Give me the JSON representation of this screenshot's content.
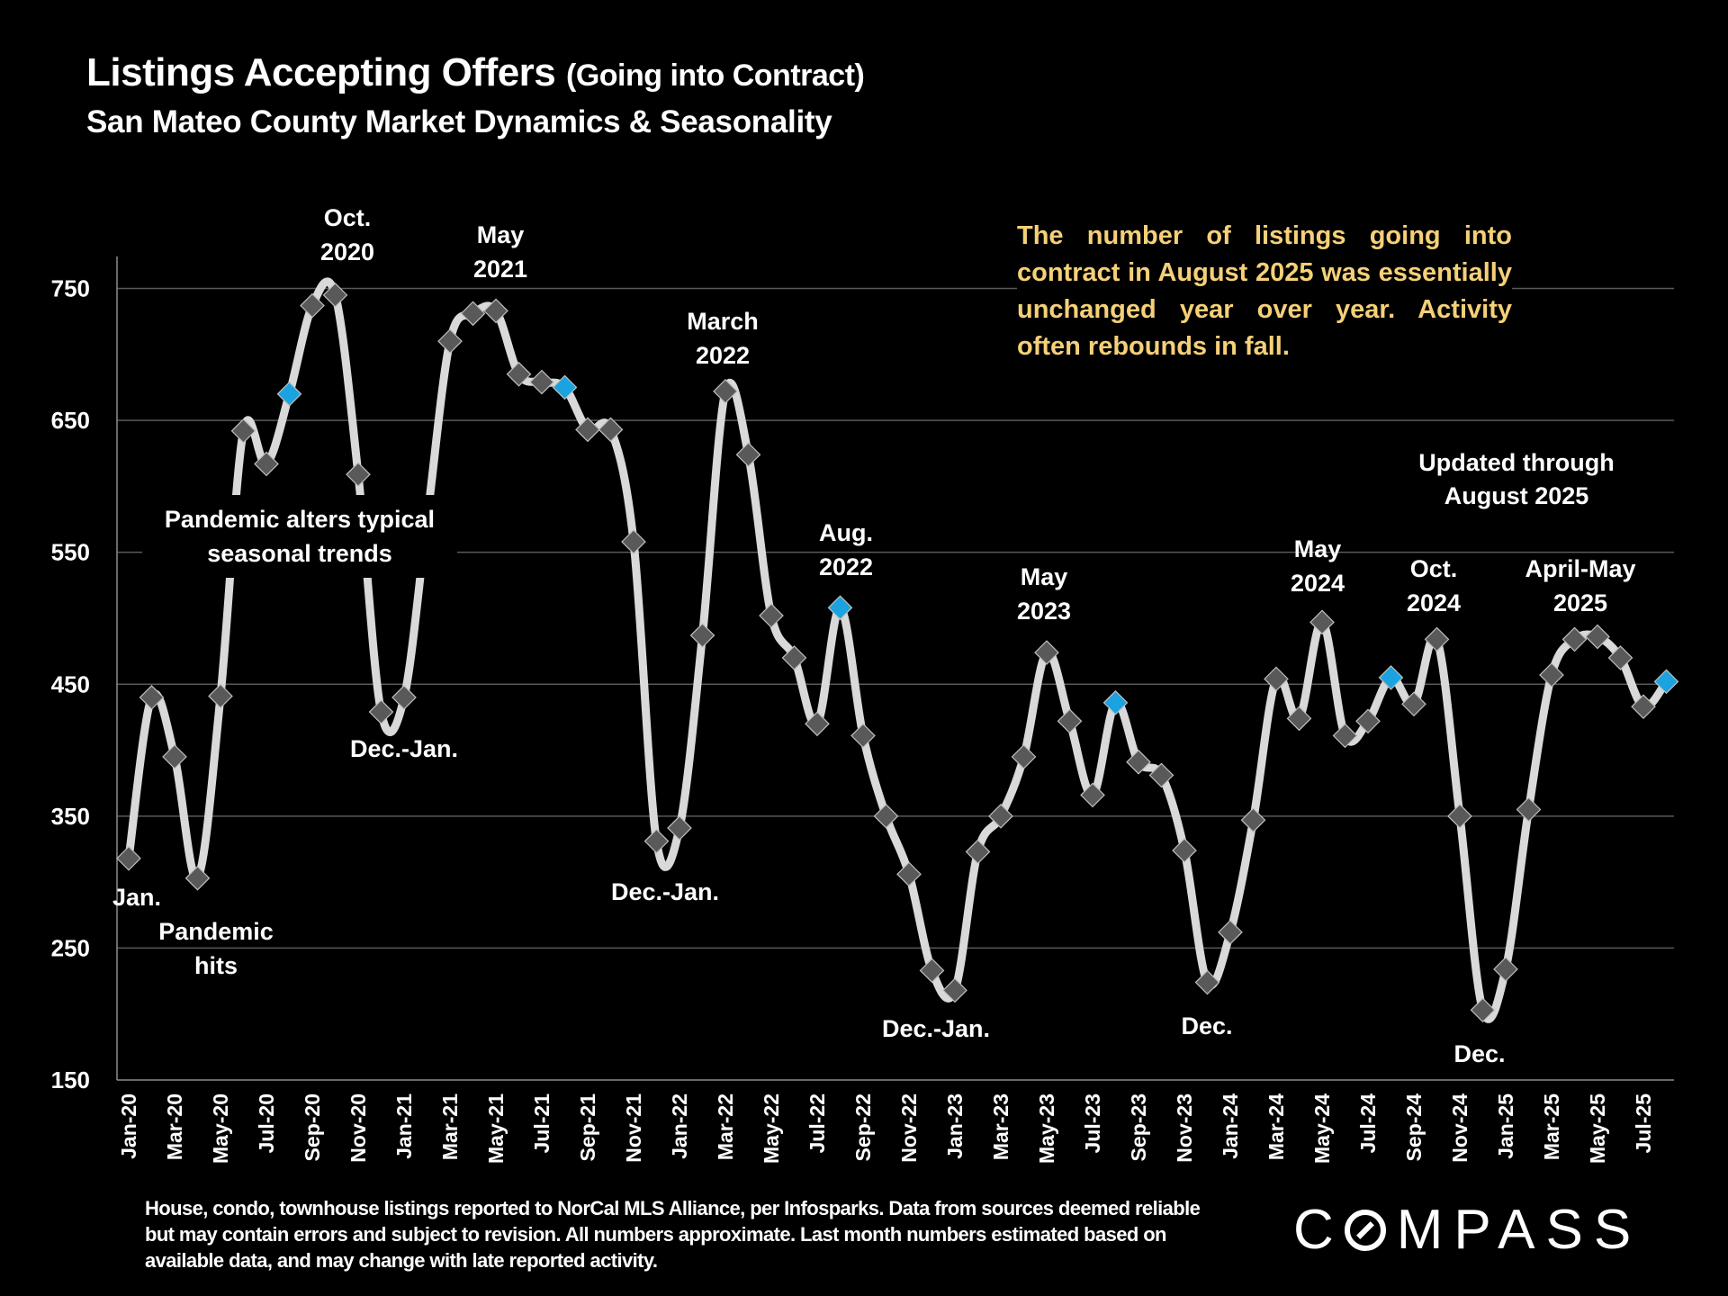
{
  "header": {
    "title_main": "Listings Accepting Offers",
    "title_paren": "(Going into Contract)",
    "subtitle": "San Mateo County Market Dynamics & Seasonality"
  },
  "note": "The number of listings going into contract in August 2025 was essentially unchanged year over year. Activity often rebounds in fall.",
  "updated": [
    "Updated through",
    "August 2025"
  ],
  "footer": "House, condo, townhouse listings reported to NorCal MLS Alliance, per Infosparks. Data from sources deemed reliable but may contain errors and subject to revision. All numbers approximate. Last month numbers estimated based on available data, and may change with late reported activity.",
  "logo": {
    "text_before": "C",
    "text_after": "MPASS"
  },
  "colors": {
    "line": "#d9d9d9",
    "marker": "#595959",
    "marker_highlight": "#1aa3e0",
    "note_text": "#f5d078",
    "grid": "#595959",
    "background": "#000000"
  },
  "chart_data": {
    "type": "line",
    "title": "Listings Accepting Offers (Going into Contract)",
    "subtitle": "San Mateo County Market Dynamics & Seasonality",
    "xlabel": "",
    "ylabel": "",
    "ylim": [
      150,
      780
    ],
    "yticks": [
      150,
      250,
      350,
      450,
      550,
      650,
      750
    ],
    "grid": true,
    "smoothed": true,
    "x": [
      "Jan-20",
      "Feb-20",
      "Mar-20",
      "Apr-20",
      "May-20",
      "Jun-20",
      "Jul-20",
      "Aug-20",
      "Sep-20",
      "Oct-20",
      "Nov-20",
      "Dec-20",
      "Jan-21",
      "Feb-21",
      "Mar-21",
      "Apr-21",
      "May-21",
      "Jun-21",
      "Jul-21",
      "Aug-21",
      "Sep-21",
      "Oct-21",
      "Nov-21",
      "Dec-21",
      "Jan-22",
      "Feb-22",
      "Mar-22",
      "Apr-22",
      "May-22",
      "Jun-22",
      "Jul-22",
      "Aug-22",
      "Sep-22",
      "Oct-22",
      "Nov-22",
      "Dec-22",
      "Jan-23",
      "Feb-23",
      "Mar-23",
      "Apr-23",
      "May-23",
      "Jun-23",
      "Jul-23",
      "Aug-23",
      "Sep-23",
      "Oct-23",
      "Nov-23",
      "Dec-23",
      "Jan-24",
      "Feb-24",
      "Mar-24",
      "Apr-24",
      "May-24",
      "Jun-24",
      "Jul-24",
      "Aug-24",
      "Sep-24",
      "Oct-24",
      "Nov-24",
      "Dec-24",
      "Jan-25",
      "Feb-25",
      "Mar-25",
      "Apr-25",
      "May-25",
      "Jun-25",
      "Jul-25",
      "Aug-25"
    ],
    "xtick_labels": [
      "Jan-20",
      "Mar-20",
      "May-20",
      "Jul-20",
      "Sep-20",
      "Nov-20",
      "Jan-21",
      "Mar-21",
      "May-21",
      "Jul-21",
      "Sep-21",
      "Nov-21",
      "Jan-22",
      "Mar-22",
      "May-22",
      "Jul-22",
      "Sep-22",
      "Nov-22",
      "Jan-23",
      "Mar-23",
      "May-23",
      "Jul-23",
      "Sep-23",
      "Nov-23",
      "Jan-24",
      "Mar-24",
      "May-24",
      "Jul-24",
      "Sep-24",
      "Nov-24",
      "Jan-25",
      "Mar-25",
      "May-25",
      "Jul-25"
    ],
    "series": [
      {
        "name": "Listings Accepting Offers",
        "values": [
          318,
          440,
          395,
          303,
          441,
          642,
          617,
          670,
          737,
          745,
          609,
          429,
          440,
          575,
          710,
          731,
          733,
          685,
          679,
          675,
          643,
          643,
          558,
          331,
          341,
          487,
          672,
          624,
          502,
          470,
          420,
          508,
          411,
          350,
          306,
          233,
          218,
          323,
          350,
          395,
          474,
          422,
          366,
          436,
          391,
          381,
          324,
          224,
          262,
          347,
          454,
          424,
          497,
          411,
          422,
          455,
          435,
          484,
          350,
          203,
          234,
          355,
          457,
          484,
          486,
          470,
          433,
          452
        ],
        "highlighted_points": [
          "Aug-20",
          "Aug-21",
          "Aug-22",
          "Aug-23",
          "Aug-24",
          "Aug-25"
        ]
      }
    ],
    "annotations": [
      {
        "text": [
          "Jan."
        ],
        "at": "Jan-20",
        "position": "below"
      },
      {
        "text": [
          "Pandemic",
          "hits"
        ],
        "at": "Apr-20",
        "position": "below"
      },
      {
        "text": [
          "Oct.",
          "2020"
        ],
        "at": "Oct-20",
        "position": "above"
      },
      {
        "text": [
          "Pandemic alters typical",
          "seasonal trends"
        ],
        "at": "Sep-20",
        "position": "center"
      },
      {
        "text": [
          "Dec.-Jan."
        ],
        "at": "Dec-20",
        "position": "below"
      },
      {
        "text": [
          "May",
          "2021"
        ],
        "at": "May-21",
        "position": "above"
      },
      {
        "text": [
          "Dec.-Jan."
        ],
        "at": "Dec-21",
        "position": "below"
      },
      {
        "text": [
          "March",
          "2022"
        ],
        "at": "Mar-22",
        "position": "above"
      },
      {
        "text": [
          "Aug.",
          "2022"
        ],
        "at": "Aug-22",
        "position": "above"
      },
      {
        "text": [
          "Dec.-Jan."
        ],
        "at": "Jan-23",
        "position": "below"
      },
      {
        "text": [
          "May",
          "2023"
        ],
        "at": "May-23",
        "position": "above"
      },
      {
        "text": [
          "Dec."
        ],
        "at": "Dec-23",
        "position": "below"
      },
      {
        "text": [
          "May",
          "2024"
        ],
        "at": "May-24",
        "position": "above"
      },
      {
        "text": [
          "Oct.",
          "2024"
        ],
        "at": "Oct-24",
        "position": "above"
      },
      {
        "text": [
          "Dec."
        ],
        "at": "Dec-24",
        "position": "below"
      },
      {
        "text": [
          "April-May",
          "2025"
        ],
        "at": "Apr-25",
        "position": "above"
      }
    ]
  }
}
